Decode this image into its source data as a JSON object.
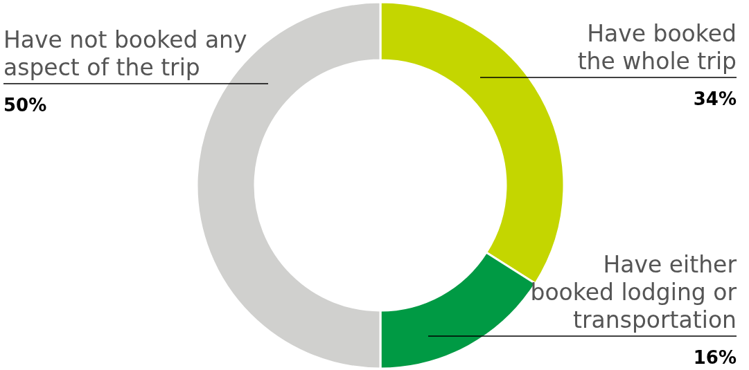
{
  "chart_data": {
    "type": "donut",
    "categories": [
      "Have booked the whole trip",
      "Have either booked lodging or transportation",
      "Have not booked any aspect of the trip"
    ],
    "values": [
      34,
      16,
      50
    ],
    "colors": [
      "#c4d600",
      "#009a44",
      "#d0d0ce"
    ],
    "value_labels": [
      "34%",
      "16%",
      "50%"
    ]
  }
}
